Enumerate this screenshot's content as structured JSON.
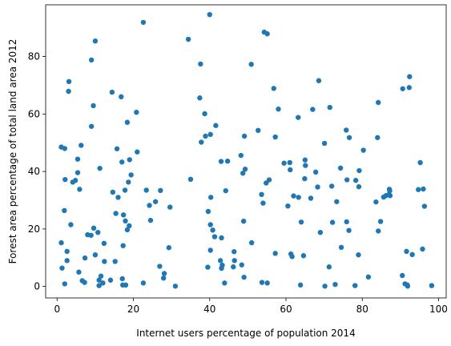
{
  "chart_data": {
    "type": "scatter",
    "xlabel": "Internet users percentage of population 2014",
    "ylabel": "Forest area percentage of total land area 2012",
    "xlim": [
      -3,
      102
    ],
    "ylim": [
      -4,
      98
    ],
    "xticks": [
      0,
      20,
      40,
      60,
      80,
      100
    ],
    "yticks": [
      0,
      20,
      40,
      60,
      80
    ],
    "grid": false,
    "marker_color": "#1f77b4",
    "points": [
      [
        1.1,
        48.5
      ],
      [
        1.1,
        15.2
      ],
      [
        1.3,
        6.4
      ],
      [
        1.9,
        26.4
      ],
      [
        2.0,
        0.9
      ],
      [
        2.0,
        48.0
      ],
      [
        2.1,
        37.2
      ],
      [
        2.6,
        12.2
      ],
      [
        2.6,
        9.0
      ],
      [
        3.0,
        67.9
      ],
      [
        3.1,
        71.3
      ],
      [
        3.6,
        21.5
      ],
      [
        4.1,
        36.3
      ],
      [
        4.8,
        36.9
      ],
      [
        5.4,
        44.3
      ],
      [
        5.4,
        39.6
      ],
      [
        5.7,
        5.0
      ],
      [
        5.9,
        33.8
      ],
      [
        6.3,
        49.1
      ],
      [
        6.6,
        2.0
      ],
      [
        7.2,
        1.4
      ],
      [
        7.3,
        9.9
      ],
      [
        8.0,
        18.0
      ],
      [
        8.9,
        17.8
      ],
      [
        9.0,
        78.8
      ],
      [
        9.0,
        55.7
      ],
      [
        9.5,
        62.9
      ],
      [
        9.6,
        20.3
      ],
      [
        10.0,
        85.4
      ],
      [
        10.0,
        11.0
      ],
      [
        10.7,
        18.8
      ],
      [
        11.0,
        0.3
      ],
      [
        11.0,
        2.2
      ],
      [
        11.2,
        41.1
      ],
      [
        11.5,
        3.6
      ],
      [
        12.0,
        1.2
      ],
      [
        12.3,
        15.0
      ],
      [
        12.4,
        8.7
      ],
      [
        14.0,
        2.2
      ],
      [
        14.4,
        67.6
      ],
      [
        14.6,
        32.8
      ],
      [
        15.2,
        8.7
      ],
      [
        15.4,
        25.4
      ],
      [
        15.7,
        47.9
      ],
      [
        16.0,
        31.0
      ],
      [
        16.8,
        66.0
      ],
      [
        17.0,
        43.3
      ],
      [
        17.1,
        2.7
      ],
      [
        17.2,
        0.5
      ],
      [
        17.3,
        14.2
      ],
      [
        17.4,
        24.9
      ],
      [
        17.8,
        33.5
      ],
      [
        17.9,
        22.8
      ],
      [
        18.0,
        0.5
      ],
      [
        18.4,
        57.1
      ],
      [
        18.4,
        19.7
      ],
      [
        18.7,
        36.3
      ],
      [
        18.9,
        21.1
      ],
      [
        19.0,
        44.1
      ],
      [
        19.4,
        38.8
      ],
      [
        20.8,
        60.6
      ],
      [
        21.0,
        46.8
      ],
      [
        22.6,
        91.9
      ],
      [
        22.6,
        1.2
      ],
      [
        23.4,
        33.5
      ],
      [
        24.2,
        28.2
      ],
      [
        24.5,
        23.0
      ],
      [
        25.8,
        29.5
      ],
      [
        26.9,
        7.0
      ],
      [
        27.1,
        33.4
      ],
      [
        27.9,
        2.9
      ],
      [
        28.1,
        4.5
      ],
      [
        29.3,
        13.5
      ],
      [
        29.6,
        27.6
      ],
      [
        31.0,
        0.1
      ],
      [
        34.4,
        86.0
      ],
      [
        35.0,
        37.3
      ],
      [
        37.4,
        65.6
      ],
      [
        37.6,
        77.4
      ],
      [
        37.8,
        50.2
      ],
      [
        38.7,
        60.1
      ],
      [
        38.9,
        52.3
      ],
      [
        39.5,
        6.7
      ],
      [
        39.6,
        26.1
      ],
      [
        40.0,
        94.6
      ],
      [
        40.2,
        52.9
      ],
      [
        40.2,
        21.5
      ],
      [
        40.2,
        12.6
      ],
      [
        40.3,
        31.0
      ],
      [
        40.8,
        19.6
      ],
      [
        41.3,
        17.3
      ],
      [
        41.6,
        56.0
      ],
      [
        42.8,
        9.0
      ],
      [
        43.0,
        43.5
      ],
      [
        43.1,
        16.9
      ],
      [
        43.1,
        6.3
      ],
      [
        43.3,
        7.4
      ],
      [
        43.9,
        1.2
      ],
      [
        44.2,
        33.3
      ],
      [
        44.7,
        43.6
      ],
      [
        46.2,
        6.8
      ],
      [
        46.4,
        12.1
      ],
      [
        46.5,
        9.0
      ],
      [
        48.2,
        45.6
      ],
      [
        48.4,
        7.5
      ],
      [
        48.7,
        39.4
      ],
      [
        48.9,
        22.7
      ],
      [
        49.0,
        3.2
      ],
      [
        49.1,
        52.3
      ],
      [
        49.3,
        40.8
      ],
      [
        50.9,
        77.3
      ],
      [
        51.0,
        15.2
      ],
      [
        52.7,
        54.3
      ],
      [
        53.6,
        32.0
      ],
      [
        53.7,
        1.4
      ],
      [
        54.0,
        29.0
      ],
      [
        54.3,
        88.5
      ],
      [
        54.8,
        36.0
      ],
      [
        55.1,
        1.2
      ],
      [
        55.1,
        87.9
      ],
      [
        55.6,
        37.1
      ],
      [
        56.8,
        68.9
      ],
      [
        57.2,
        52.0
      ],
      [
        57.2,
        11.5
      ],
      [
        58.0,
        61.7
      ],
      [
        59.5,
        42.9
      ],
      [
        60.5,
        28.0
      ],
      [
        61.0,
        43.1
      ],
      [
        61.1,
        40.6
      ],
      [
        61.3,
        11.3
      ],
      [
        61.6,
        10.4
      ],
      [
        62.0,
        31.5
      ],
      [
        63.2,
        58.8
      ],
      [
        63.3,
        31.0
      ],
      [
        63.8,
        0.5
      ],
      [
        64.0,
        22.4
      ],
      [
        64.6,
        10.7
      ],
      [
        64.9,
        37.5
      ],
      [
        65.0,
        44.0
      ],
      [
        65.1,
        42.1
      ],
      [
        66.5,
        30.7
      ],
      [
        67.0,
        61.6
      ],
      [
        67.8,
        39.8
      ],
      [
        68.3,
        34.6
      ],
      [
        68.6,
        71.6
      ],
      [
        69.0,
        18.8
      ],
      [
        70.1,
        49.8
      ],
      [
        70.2,
        0.1
      ],
      [
        71.3,
        6.8
      ],
      [
        71.5,
        62.3
      ],
      [
        72.0,
        34.9
      ],
      [
        72.2,
        22.3
      ],
      [
        72.9,
        0.7
      ],
      [
        73.3,
        29.5
      ],
      [
        74.3,
        41.2
      ],
      [
        74.5,
        13.6
      ],
      [
        75.8,
        54.4
      ],
      [
        75.9,
        22.5
      ],
      [
        76.0,
        37.1
      ],
      [
        76.5,
        19.5
      ],
      [
        76.6,
        51.8
      ],
      [
        78.1,
        0.3
      ],
      [
        78.3,
        36.9
      ],
      [
        79.0,
        11.0
      ],
      [
        79.1,
        34.7
      ],
      [
        79.2,
        40.3
      ],
      [
        80.3,
        47.4
      ],
      [
        81.6,
        3.3
      ],
      [
        83.6,
        29.4
      ],
      [
        84.0,
        51.8
      ],
      [
        84.2,
        64.0
      ],
      [
        84.2,
        19.3
      ],
      [
        84.8,
        22.6
      ],
      [
        85.6,
        31.1
      ],
      [
        86.2,
        31.6
      ],
      [
        87.0,
        32.0
      ],
      [
        87.1,
        33.8
      ],
      [
        87.2,
        33.3
      ],
      [
        87.3,
        31.6
      ],
      [
        90.5,
        3.8
      ],
      [
        90.6,
        68.8
      ],
      [
        91.2,
        0.9
      ],
      [
        91.6,
        12.2
      ],
      [
        91.8,
        0.5
      ],
      [
        91.9,
        0.1
      ],
      [
        92.3,
        69.2
      ],
      [
        92.4,
        73.0
      ],
      [
        93.1,
        11.1
      ],
      [
        94.7,
        33.7
      ],
      [
        95.2,
        43.1
      ],
      [
        95.8,
        13.0
      ],
      [
        96.0,
        33.9
      ],
      [
        96.3,
        27.9
      ],
      [
        98.2,
        0.3
      ]
    ]
  }
}
